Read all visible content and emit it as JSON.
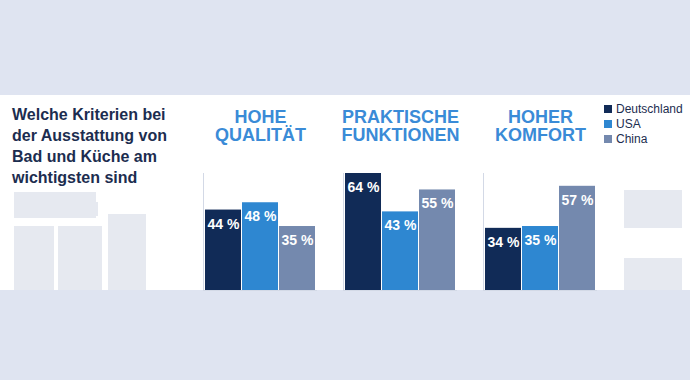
{
  "chart_data": {
    "type": "bar",
    "title": "Welche Kriterien bei der Ausstattung von Bad und Küche am wichtigsten sind",
    "categories": [
      "HOHE QUALITÄT",
      "PRAKTISCHE FUNKTIONEN",
      "HOHER KOMFORT"
    ],
    "series": [
      {
        "name": "Deutschland",
        "color": "#112b57",
        "values": [
          44,
          64,
          34
        ],
        "value_labels": [
          "44 %",
          "64 %",
          "34 %"
        ]
      },
      {
        "name": "USA",
        "color": "#2e87d1",
        "values": [
          48,
          43,
          35
        ],
        "value_labels": [
          "48 %",
          "43 %",
          "35 %"
        ]
      },
      {
        "name": "China",
        "color": "#7489ae",
        "values": [
          35,
          55,
          57
        ],
        "value_labels": [
          "35 %",
          "55 %",
          "57 %"
        ]
      }
    ],
    "ylim": [
      0,
      64
    ],
    "yticks": [],
    "grid": false,
    "legend": "top-right",
    "data_labels": true,
    "tick_labels": "x"
  }
}
